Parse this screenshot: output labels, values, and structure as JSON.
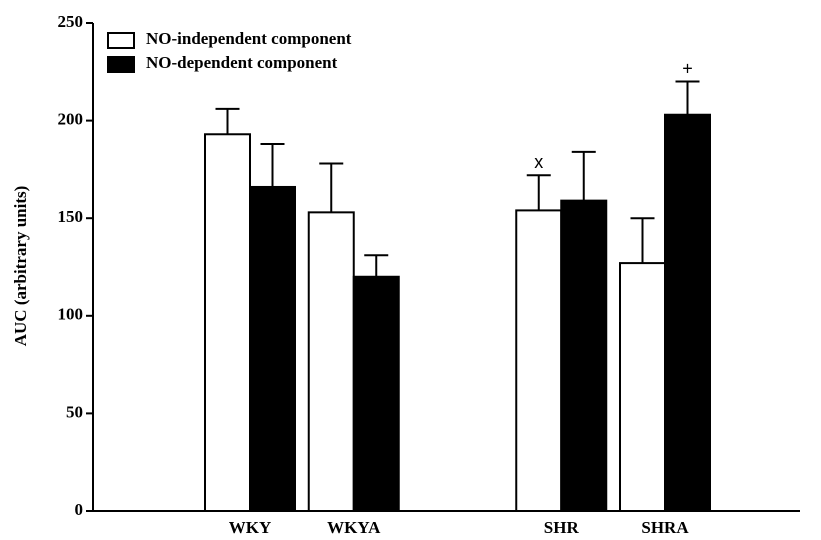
{
  "chart_data": {
    "type": "bar",
    "y_label": "AUC (arbitrary units)",
    "categories": [
      "WKY",
      "WKYA",
      null,
      "SHR",
      "SHRA"
    ],
    "series": [
      {
        "name": "NO-independent component",
        "color": "#ffffff",
        "values": [
          193,
          153,
          null,
          154,
          127
        ],
        "errors": [
          13,
          25,
          null,
          18,
          23
        ]
      },
      {
        "name": "NO-dependent component",
        "color": "#000000",
        "values": [
          166,
          120,
          null,
          159,
          203
        ],
        "errors": [
          22,
          11,
          null,
          25,
          17
        ]
      }
    ],
    "annotations": [
      {
        "text": "x",
        "series": 0,
        "category": 3
      },
      {
        "text": "+",
        "series": 1,
        "category": 4
      }
    ],
    "ylim": [
      0,
      250
    ],
    "yticks": [
      0,
      50,
      100,
      150,
      200,
      250
    ],
    "legend": "upper-left"
  }
}
